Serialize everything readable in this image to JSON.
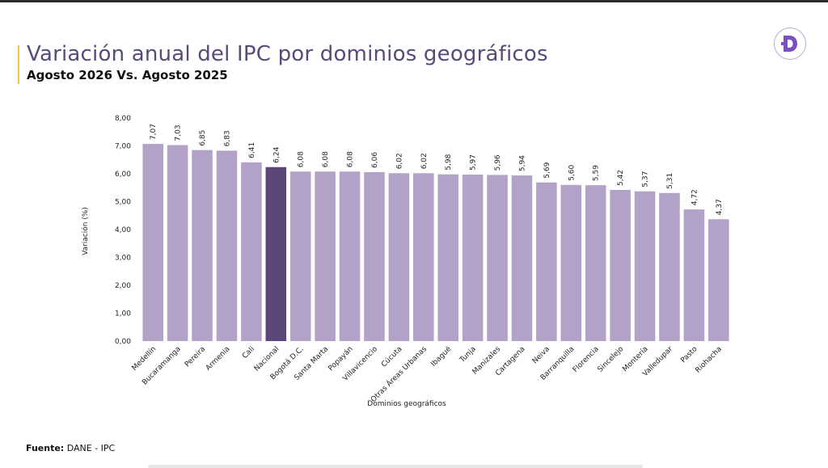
{
  "header": {
    "title": "Variación anual del IPC por dominios geográficos",
    "subtitle": "Agosto 2026 Vs. Agosto 2025"
  },
  "logo": {
    "icon": "dane-d-logo-icon",
    "color": "#7b4fc0"
  },
  "source": {
    "label": "Fuente:",
    "text": " DANE - IPC"
  },
  "colors": {
    "bar": "#b2a2c8",
    "highlight": "#5c4579"
  },
  "chart_data": {
    "type": "bar",
    "xlabel": "Dominios geográficos",
    "ylabel": "Variación (%)",
    "ylim": [
      0,
      8
    ],
    "yticks": [
      "0,00",
      "1,00",
      "2,00",
      "3,00",
      "4,00",
      "5,00",
      "6,00",
      "7,00",
      "8,00"
    ],
    "grid": false,
    "highlight": "Nacional",
    "categories": [
      "Medellín",
      "Bucaramanga",
      "Pereira",
      "Armenia",
      "Cali",
      "Nacional",
      "Bogotá D.C.",
      "Santa Marta",
      "Popayán",
      "Villavicencio",
      "Cúcuta",
      "Otras Áreas Urbanas",
      "Ibagué",
      "Tunja",
      "Manizales",
      "Cartagena",
      "Neiva",
      "Barranquilla",
      "Florencia",
      "Sincelejo",
      "Montería",
      "Valledupar",
      "Pasto",
      "Riohacha"
    ],
    "values": [
      7.07,
      7.03,
      6.85,
      6.83,
      6.41,
      6.24,
      6.08,
      6.08,
      6.08,
      6.06,
      6.02,
      6.02,
      5.98,
      5.97,
      5.96,
      5.94,
      5.69,
      5.6,
      5.59,
      5.42,
      5.37,
      5.31,
      4.72,
      4.37
    ],
    "labels": [
      "7,07",
      "7,03",
      "6,85",
      "6,83",
      "6,41",
      "6,24",
      "6,08",
      "6,08",
      "6,08",
      "6,06",
      "6,02",
      "6,02",
      "5,98",
      "5,97",
      "5,96",
      "5,94",
      "5,69",
      "5,60",
      "5,59",
      "5,42",
      "5,37",
      "5,31",
      "4,72",
      "4,37"
    ]
  }
}
